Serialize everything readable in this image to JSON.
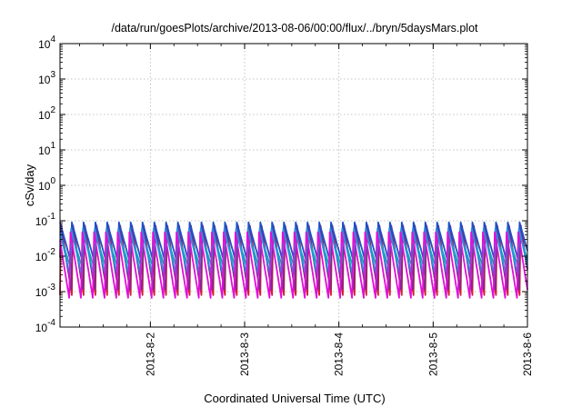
{
  "chart_data": {
    "type": "line",
    "title": "/data/run/goesPlots/archive/2013-08-06/00:00/flux/../bryn/5daysMars.plot",
    "xlabel": "Coordinated Universal Time (UTC)",
    "ylabel": "cSv/day",
    "y_scale": "log",
    "ylim": [
      0.0001,
      10000
    ],
    "y_ticks": [
      {
        "value": 0.0001,
        "base": "10",
        "exp": "-4"
      },
      {
        "value": 0.001,
        "base": "10",
        "exp": "-3"
      },
      {
        "value": 0.01,
        "base": "10",
        "exp": "-2"
      },
      {
        "value": 0.1,
        "base": "10",
        "exp": "-1"
      },
      {
        "value": 1,
        "base": "10",
        "exp": "0"
      },
      {
        "value": 10,
        "base": "10",
        "exp": "1"
      },
      {
        "value": 100,
        "base": "10",
        "exp": "2"
      },
      {
        "value": 1000,
        "base": "10",
        "exp": "3"
      },
      {
        "value": 10000,
        "base": "10",
        "exp": "4"
      }
    ],
    "xlim": [
      "2013-08-01T01:00",
      "2013-08-06T00:00"
    ],
    "x_ticks": [
      "2013-8-2",
      "2013-8-3",
      "2013-8-4",
      "2013-8-5",
      "2013-8-6"
    ],
    "grid": true,
    "cycle_hours": 3,
    "series": [
      {
        "color": "#d02030",
        "peak": 0.085,
        "trough": 0.0008
      },
      {
        "color": "#7b2a8f",
        "peak": 0.075,
        "trough": 0.0011
      },
      {
        "color": "#1e50c8",
        "peak": 0.09,
        "trough": 0.007
      },
      {
        "color": "#13a8a8",
        "peak": 0.045,
        "trough": 0.005
      },
      {
        "color": "#2a8fe0",
        "peak": 0.065,
        "trough": 0.003
      },
      {
        "color": "#e010d8",
        "peak": 0.05,
        "trough": 0.0006
      }
    ]
  }
}
